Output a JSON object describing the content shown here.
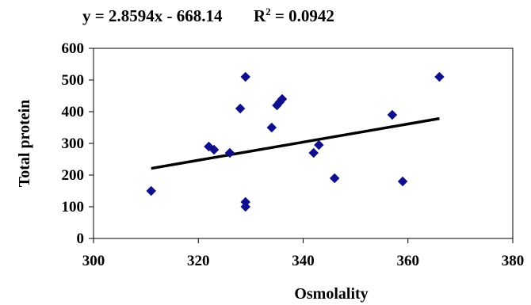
{
  "chart_data": {
    "type": "scatter",
    "title": "",
    "equation": "y = 2.8594x - 668.14",
    "r2_label": "R",
    "r2_superscript": "2",
    "r2_value": " = 0.0942",
    "xlabel": "Osmolality",
    "ylabel": "Total protein",
    "xlim": [
      300,
      380
    ],
    "ylim": [
      0,
      600
    ],
    "xticks": [
      "300",
      "320",
      "340",
      "360",
      "380"
    ],
    "yticks": [
      "0",
      "100",
      "200",
      "300",
      "400",
      "500",
      "600"
    ],
    "grid": false,
    "marker": "diamond",
    "marker_color": "#0f0f8c",
    "trendline": {
      "slope": 2.8594,
      "intercept": -668.14,
      "x_start": 311,
      "x_end": 366,
      "color": "#000000"
    },
    "points": [
      {
        "x": 311,
        "y": 150
      },
      {
        "x": 322,
        "y": 290
      },
      {
        "x": 323,
        "y": 280
      },
      {
        "x": 326,
        "y": 270
      },
      {
        "x": 328,
        "y": 410
      },
      {
        "x": 329,
        "y": 510
      },
      {
        "x": 329,
        "y": 115
      },
      {
        "x": 329,
        "y": 100
      },
      {
        "x": 334,
        "y": 350
      },
      {
        "x": 335,
        "y": 420
      },
      {
        "x": 335.5,
        "y": 430
      },
      {
        "x": 336,
        "y": 440
      },
      {
        "x": 342,
        "y": 270
      },
      {
        "x": 343,
        "y": 295
      },
      {
        "x": 346,
        "y": 190
      },
      {
        "x": 357,
        "y": 390
      },
      {
        "x": 359,
        "y": 180
      },
      {
        "x": 366,
        "y": 510
      }
    ]
  }
}
